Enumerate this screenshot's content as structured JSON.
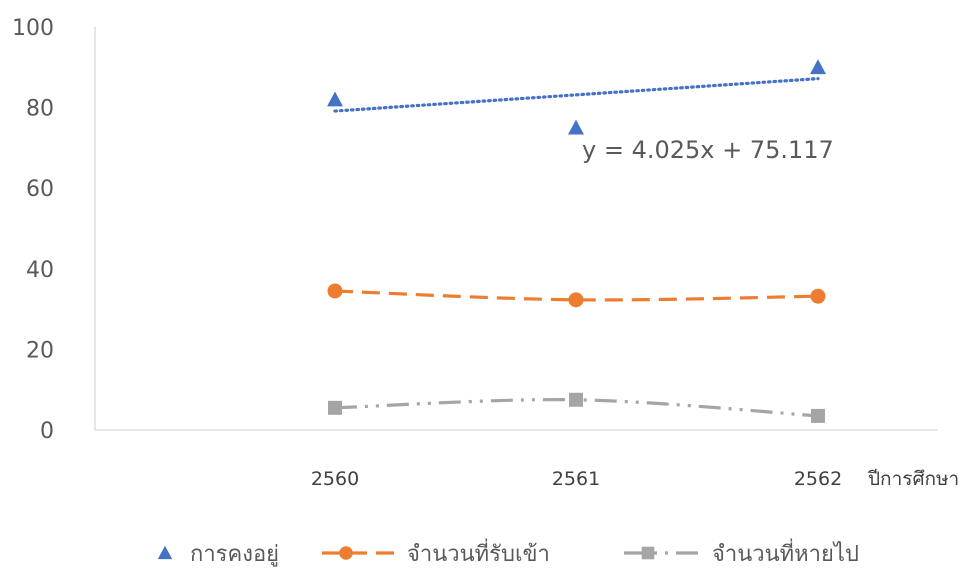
{
  "chart_data": {
    "type": "line",
    "x": [
      "2560",
      "2561",
      "2562"
    ],
    "xlabel": "ปีการศึกษา",
    "ylabel": "",
    "ylim": [
      0,
      100
    ],
    "yticks": [
      "0",
      "20",
      "40",
      "60",
      "80",
      "100"
    ],
    "grid": false,
    "legend_position": "bottom",
    "series": [
      {
        "name": "การคงอยู่",
        "values": [
          82,
          75,
          90
        ],
        "color": "#4472C4",
        "marker": "triangle",
        "line": "none"
      },
      {
        "name": "จำนวนที่รับเข้า",
        "values": [
          34.5,
          32.3,
          33.2
        ],
        "color": "#ED7D31",
        "marker": "circle",
        "line": "dashed"
      },
      {
        "name": "จำนวนที่หายไป",
        "values": [
          5.5,
          7.5,
          3.5
        ],
        "color": "#A5A5A5",
        "marker": "square",
        "line": "dash-dot-dot"
      }
    ],
    "trendline": {
      "series": "การคงอยู่",
      "type": "linear",
      "color": "#4472C4",
      "slope": 4.025,
      "intercept": 75.117,
      "equation_label": "y = 4.025x + 75.117"
    }
  }
}
